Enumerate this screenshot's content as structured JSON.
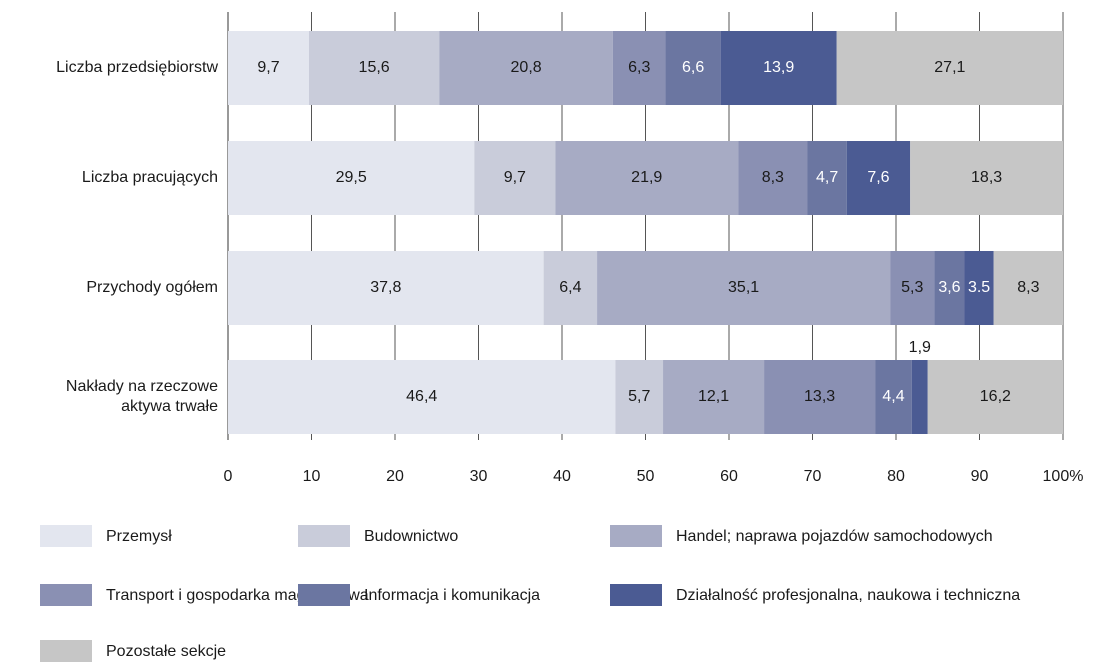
{
  "chart_data": {
    "type": "stacked-bar-horizontal",
    "categories": [
      "Liczba przedsiębiorstw",
      "Liczba pracujących",
      "Przychody ogółem",
      "Nakłady na rzeczowe aktywa trwałe"
    ],
    "series": [
      {
        "name": "Przemysł",
        "color": "#e3e6ef",
        "label_color": "#1a1a1a",
        "values": [
          9.7,
          29.5,
          37.8,
          46.4
        ],
        "value_labels": [
          "9,7",
          "29,5",
          "37,8",
          "46,4"
        ]
      },
      {
        "name": "Budownictwo",
        "color": "#c9ccda",
        "label_color": "#1a1a1a",
        "values": [
          15.6,
          9.7,
          6.4,
          5.7
        ],
        "value_labels": [
          "15,6",
          "9,7",
          "6,4",
          "5,7"
        ]
      },
      {
        "name": "Handel; naprawa pojazdów samochodowych",
        "color": "#a7abc4",
        "label_color": "#1a1a1a",
        "values": [
          20.8,
          21.9,
          35.1,
          12.1
        ],
        "value_labels": [
          "20,8",
          "21,9",
          "35,1",
          "12,1"
        ]
      },
      {
        "name": "Transport i gospodarka magazynowa",
        "color": "#8a90b3",
        "label_color": "#1a1a1a",
        "values": [
          6.3,
          8.3,
          5.3,
          13.3
        ],
        "value_labels": [
          "6,3",
          "8,3",
          "5,3",
          "13,3"
        ]
      },
      {
        "name": "Informacja i komunikacja",
        "color": "#6b76a1",
        "label_color": "#ffffff",
        "values": [
          6.6,
          4.7,
          3.6,
          4.4
        ],
        "value_labels": [
          "6,6",
          "4,7",
          "3,6",
          "4,4"
        ]
      },
      {
        "name": "Działalność profesjonalna, naukowa i techniczna",
        "color": "#4b5b93",
        "label_color": "#ffffff",
        "values": [
          13.9,
          7.6,
          3.5,
          1.9
        ],
        "value_labels": [
          "13,9",
          "7,6",
          "3.5",
          "1,9"
        ]
      },
      {
        "name": "Pozostałe sekcje",
        "color": "#c6c6c6",
        "label_color": "#1a1a1a",
        "values": [
          27.1,
          18.3,
          8.3,
          16.2
        ],
        "value_labels": [
          "27,1",
          "18,3",
          "8,3",
          "16,2"
        ]
      }
    ],
    "xlim": [
      0,
      100
    ],
    "xticks": [
      0,
      10,
      20,
      30,
      40,
      50,
      60,
      70,
      80,
      90,
      {
        "value": 100,
        "label": "100%"
      }
    ],
    "grid": true
  }
}
